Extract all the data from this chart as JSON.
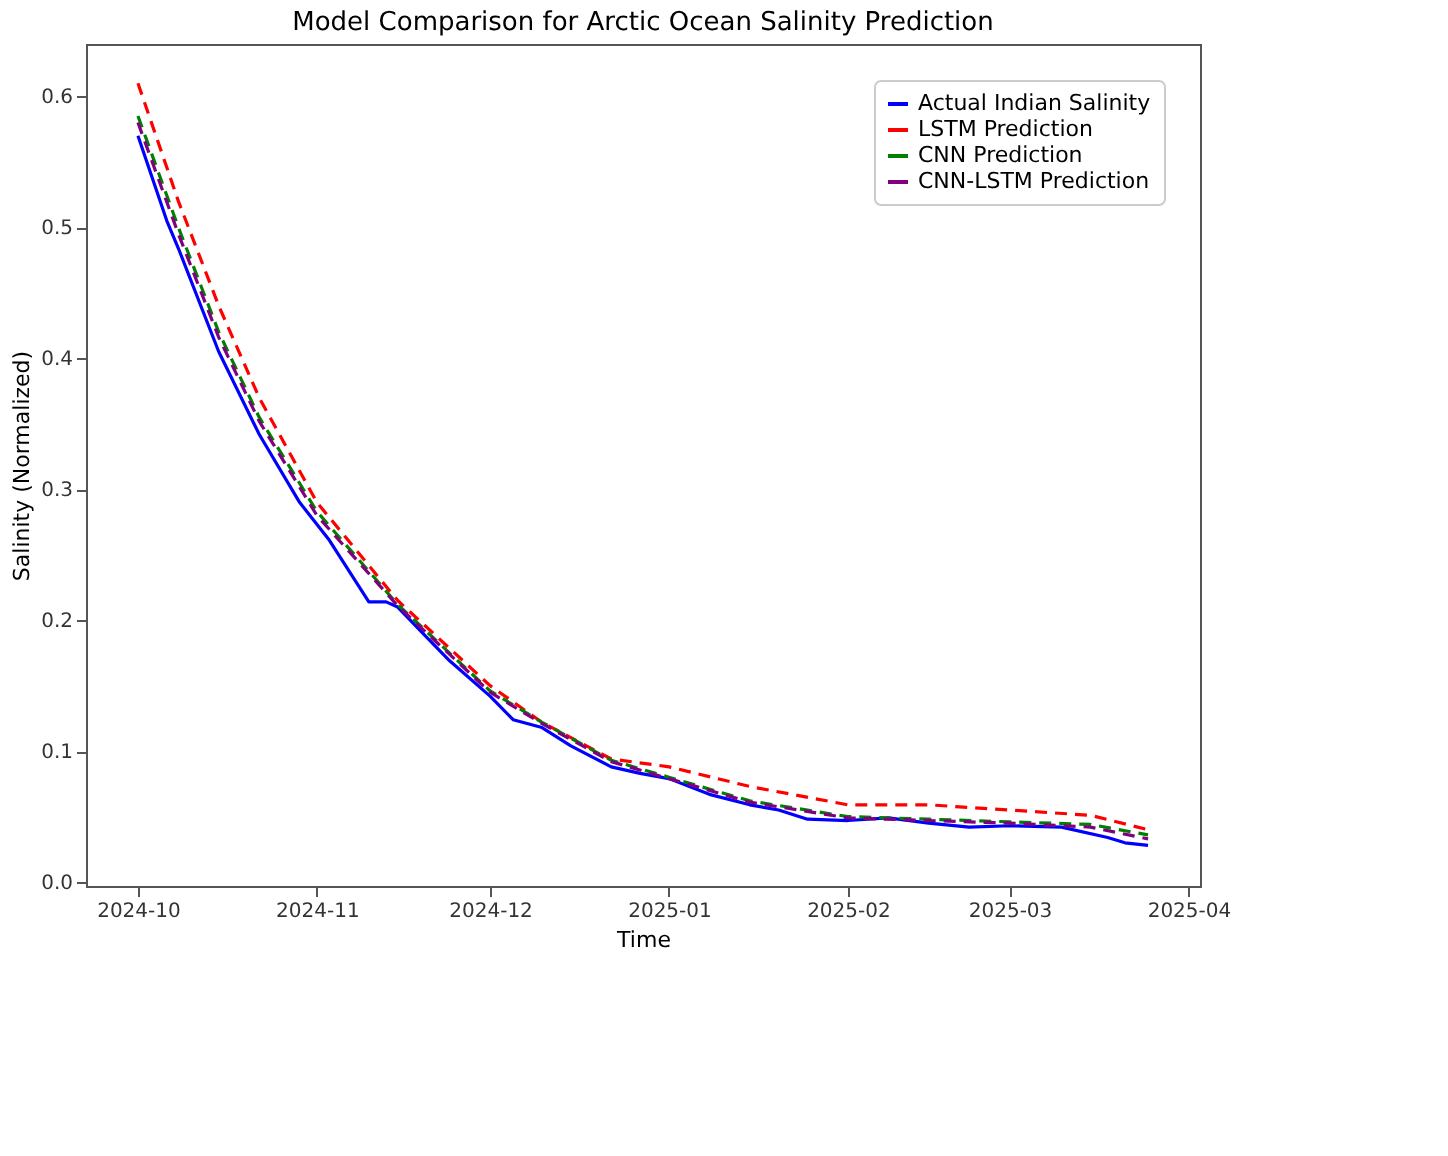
{
  "chart_data": {
    "type": "line",
    "title": "Model Comparison for Arctic Ocean Salinity Prediction",
    "xlabel": "Time",
    "ylabel": "Salinity (Normalized)",
    "xlim": [
      "2024-09-22",
      "2025-04-03"
    ],
    "xticks": [
      {
        "value": "2024-10-01",
        "label": "2024-10"
      },
      {
        "value": "2024-11-01",
        "label": "2024-11"
      },
      {
        "value": "2024-12-01",
        "label": "2024-12"
      },
      {
        "value": "2025-01-01",
        "label": "2025-01"
      },
      {
        "value": "2025-02-01",
        "label": "2025-02"
      },
      {
        "value": "2025-03-01",
        "label": "2025-03"
      },
      {
        "value": "2025-04-01",
        "label": "2025-04"
      }
    ],
    "ylim": [
      -0.003,
      0.64
    ],
    "yticks": [
      {
        "value": 0,
        "label": "0.0"
      },
      0.1,
      0.2,
      0.3,
      0.4,
      0.5,
      0.6
    ],
    "grid": false,
    "legend": "top right",
    "series": [
      {
        "name": "Actual Indian Salinity",
        "color": "#0000ff",
        "line_style": "solid",
        "x": [
          "2024-10-01",
          "2024-10-06",
          "2024-10-08",
          "2024-10-15",
          "2024-10-22",
          "2024-10-29",
          "2024-11-03",
          "2024-11-10",
          "2024-11-13",
          "2024-11-15",
          "2024-11-20",
          "2024-11-24",
          "2024-12-01",
          "2024-12-05",
          "2024-12-10",
          "2024-12-15",
          "2024-12-22",
          "2024-12-27",
          "2025-01-01",
          "2025-01-08",
          "2025-01-15",
          "2025-01-20",
          "2025-01-25",
          "2025-02-01",
          "2025-02-08",
          "2025-02-15",
          "2025-02-22",
          "2025-03-01",
          "2025-03-10",
          "2025-03-18",
          "2025-03-21",
          "2025-03-25"
        ],
        "values": [
          0.57,
          0.505,
          0.484,
          0.405,
          0.342,
          0.29,
          0.262,
          0.214,
          0.214,
          0.21,
          0.187,
          0.169,
          0.142,
          0.124,
          0.118,
          0.104,
          0.088,
          0.083,
          0.079,
          0.067,
          0.059,
          0.055,
          0.048,
          0.047,
          0.049,
          0.045,
          0.042,
          0.043,
          0.042,
          0.034,
          0.03,
          0.028
        ]
      },
      {
        "name": "LSTM Prediction",
        "color": "#ff0000",
        "line_style": "dashed",
        "x": [
          "2024-10-01",
          "2024-10-08",
          "2024-10-15",
          "2024-10-22",
          "2024-11-01",
          "2024-11-15",
          "2024-12-01",
          "2024-12-10",
          "2024-12-22",
          "2025-01-01",
          "2025-01-15",
          "2025-02-01",
          "2025-02-15",
          "2025-03-01",
          "2025-03-15",
          "2025-03-25"
        ],
        "values": [
          0.61,
          0.52,
          0.44,
          0.37,
          0.29,
          0.215,
          0.15,
          0.122,
          0.094,
          0.088,
          0.073,
          0.059,
          0.059,
          0.055,
          0.051,
          0.04
        ]
      },
      {
        "name": "CNN Prediction",
        "color": "#008000",
        "line_style": "dashed",
        "x": [
          "2024-10-01",
          "2024-10-08",
          "2024-10-15",
          "2024-10-22",
          "2024-11-01",
          "2024-11-15",
          "2024-12-01",
          "2024-12-10",
          "2024-12-22",
          "2025-01-01",
          "2025-01-15",
          "2025-02-01",
          "2025-02-15",
          "2025-03-01",
          "2025-03-15",
          "2025-03-25"
        ],
        "values": [
          0.585,
          0.5,
          0.42,
          0.355,
          0.283,
          0.212,
          0.146,
          0.122,
          0.093,
          0.08,
          0.062,
          0.05,
          0.048,
          0.046,
          0.044,
          0.036
        ]
      },
      {
        "name": "CNN-LSTM Prediction",
        "color": "#800080",
        "line_style": "dashed",
        "x": [
          "2024-10-01",
          "2024-10-08",
          "2024-10-15",
          "2024-10-22",
          "2024-11-01",
          "2024-11-15",
          "2024-12-01",
          "2024-12-10",
          "2024-12-22",
          "2025-01-01",
          "2025-01-15",
          "2025-02-01",
          "2025-02-15",
          "2025-03-01",
          "2025-03-15",
          "2025-03-25"
        ],
        "values": [
          0.58,
          0.495,
          0.416,
          0.352,
          0.28,
          0.211,
          0.145,
          0.121,
          0.092,
          0.079,
          0.061,
          0.049,
          0.047,
          0.045,
          0.042,
          0.033
        ]
      }
    ]
  }
}
